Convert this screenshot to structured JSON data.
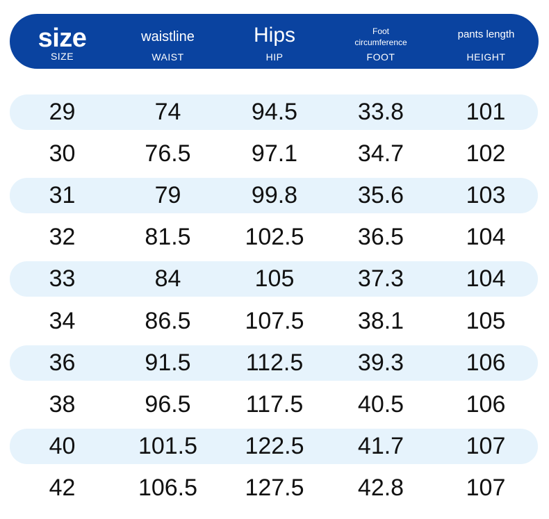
{
  "header": {
    "size": {
      "main": "size",
      "sub": "SIZE"
    },
    "waist": {
      "main": "waistline",
      "sub": "WAIST"
    },
    "hips": {
      "main": "Hips",
      "sub": "HIP"
    },
    "foot": {
      "main_line1": "Foot",
      "main_line2": "circumference",
      "sub": "FOOT"
    },
    "height": {
      "main": "pants length",
      "sub": "HEIGHT"
    }
  },
  "colors": {
    "header_bg": "#0a43a0",
    "row_shade": "#e6f3fc",
    "text": "#111111"
  },
  "rows": [
    {
      "size": "29",
      "waist": "74",
      "hip": "94.5",
      "foot": "33.8",
      "height": "101"
    },
    {
      "size": "30",
      "waist": "76.5",
      "hip": "97.1",
      "foot": "34.7",
      "height": "102"
    },
    {
      "size": "31",
      "waist": "79",
      "hip": "99.8",
      "foot": "35.6",
      "height": "103"
    },
    {
      "size": "32",
      "waist": "81.5",
      "hip": "102.5",
      "foot": "36.5",
      "height": "104"
    },
    {
      "size": "33",
      "waist": "84",
      "hip": "105",
      "foot": "37.3",
      "height": "104"
    },
    {
      "size": "34",
      "waist": "86.5",
      "hip": "107.5",
      "foot": "38.1",
      "height": "105"
    },
    {
      "size": "36",
      "waist": "91.5",
      "hip": "112.5",
      "foot": "39.3",
      "height": "106"
    },
    {
      "size": "38",
      "waist": "96.5",
      "hip": "117.5",
      "foot": "40.5",
      "height": "106"
    },
    {
      "size": "40",
      "waist": "101.5",
      "hip": "122.5",
      "foot": "41.7",
      "height": "107"
    },
    {
      "size": "42",
      "waist": "106.5",
      "hip": "127.5",
      "foot": "42.8",
      "height": "107"
    }
  ]
}
